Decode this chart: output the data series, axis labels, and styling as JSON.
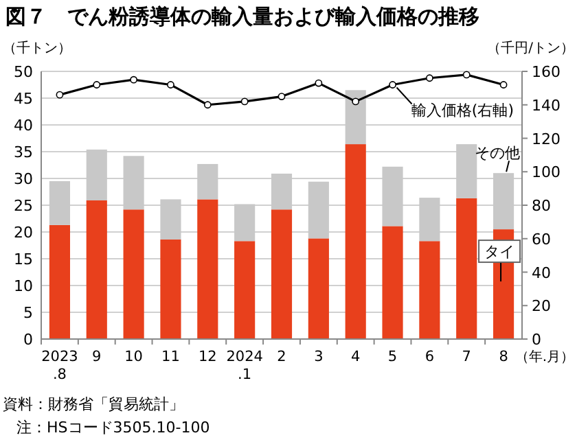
{
  "chart_data": {
    "type": "bar",
    "title": "図７　でん粉誘導体の輸入量および輸入価格の推移",
    "xlabel": "（年.月）",
    "ylabel": "（千トン）",
    "y2label": "（千円/トン）",
    "categories": [
      "2023\n.8",
      "9",
      "10",
      "11",
      "12",
      "2024\n.1",
      "2",
      "3",
      "4",
      "5",
      "6",
      "7",
      "8"
    ],
    "stacked": true,
    "grid": "y",
    "ylim": [
      0,
      50
    ],
    "yticks": [
      0,
      5,
      10,
      15,
      20,
      25,
      30,
      35,
      40,
      45,
      50
    ],
    "y2lim": [
      0,
      160
    ],
    "y2ticks": [
      0,
      20,
      40,
      60,
      80,
      100,
      120,
      140,
      160
    ],
    "series": [
      {
        "name": "タイ",
        "color": "#e8401c",
        "values": [
          21.3,
          25.9,
          24.2,
          18.6,
          26.1,
          18.3,
          24.2,
          18.8,
          36.4,
          21.1,
          18.3,
          26.3,
          20.5
        ]
      },
      {
        "name": "その他",
        "color": "#c8c8c8",
        "values": [
          8.2,
          9.5,
          10.0,
          7.5,
          6.6,
          6.9,
          6.7,
          10.6,
          10.1,
          11.1,
          8.1,
          10.1,
          10.5
        ]
      },
      {
        "name": "輸入価格(右軸)",
        "type": "line",
        "axis": "y2",
        "color": "#000000",
        "marker": "circle",
        "line_style": "solid",
        "values": [
          146,
          152,
          155,
          152,
          140,
          142,
          145,
          153,
          142,
          152,
          156,
          158,
          152
        ]
      }
    ],
    "annotations": [
      "資料：財務省「貿易統計」",
      "注：HSコード3505.10-100"
    ]
  }
}
